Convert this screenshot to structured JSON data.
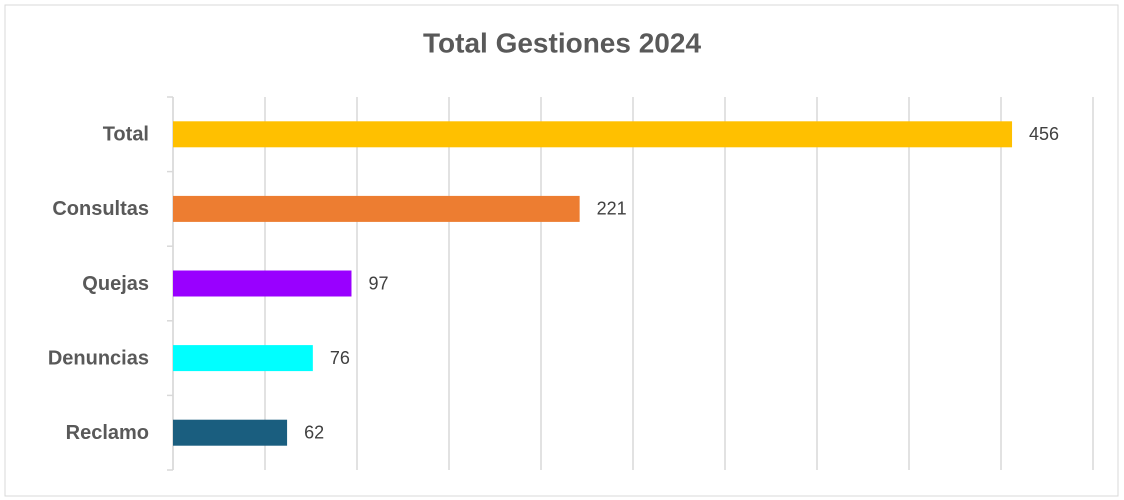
{
  "chart_data": {
    "type": "hbar",
    "title": "Total Gestiones 2024",
    "categories": [
      "Total",
      "Consultas",
      "Quejas",
      "Denuncias",
      "Reclamo"
    ],
    "values": [
      456,
      221,
      97,
      76,
      62
    ],
    "colors": [
      "#ffc000",
      "#ed7d31",
      "#9900ff",
      "#00ffff",
      "#1a5e7f"
    ],
    "xlim": [
      0,
      500
    ],
    "xticks": [
      0,
      50,
      100,
      150,
      200,
      250,
      300,
      350,
      400,
      450,
      500
    ],
    "grid": true,
    "show_tick_labels": false
  }
}
